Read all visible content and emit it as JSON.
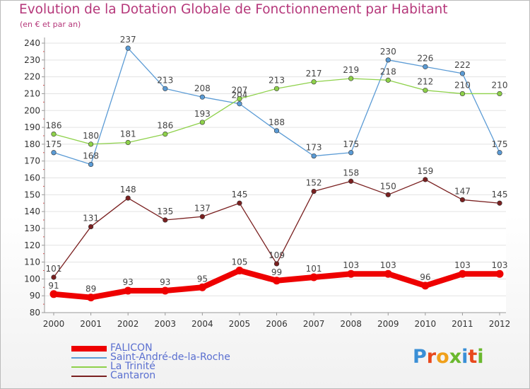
{
  "title": "Evolution de la Dotation Globale de Fonctionnement par Habitant",
  "subtitle": "(en € et par an)",
  "logo": {
    "text": "Proxiti",
    "colors": [
      "#3a8fd6",
      "#e8491d",
      "#f0a01a",
      "#6ab82e",
      "#3a8fd6",
      "#e8491d",
      "#6ab82e"
    ]
  },
  "chart_data": {
    "type": "line",
    "x": [
      "2000",
      "2001",
      "2002",
      "2003",
      "2004",
      "2005",
      "2006",
      "2007",
      "2008",
      "2009",
      "2010",
      "2011",
      "2012"
    ],
    "ylim": [
      80,
      240
    ],
    "yticks": [
      80,
      90,
      100,
      110,
      120,
      130,
      140,
      150,
      160,
      170,
      180,
      190,
      200,
      210,
      220,
      230,
      240
    ],
    "grid": "horizontal",
    "legend_position": "bottom-left",
    "series": [
      {
        "name": "FALICON",
        "color": "#ee0000",
        "values": [
          91,
          89,
          93,
          93,
          95,
          105,
          99,
          101,
          103,
          103,
          96,
          103,
          103
        ]
      },
      {
        "name": "Saint-André-de-la-Roche",
        "color": "#5b9bd5",
        "values": [
          175,
          168,
          237,
          213,
          208,
          204,
          188,
          173,
          175,
          230,
          226,
          222,
          175
        ]
      },
      {
        "name": "La Trinité",
        "color": "#8ed14a",
        "values": [
          186,
          180,
          181,
          186,
          193,
          207,
          213,
          217,
          219,
          218,
          212,
          210,
          210
        ]
      },
      {
        "name": "Cantaron",
        "color": "#7a2020",
        "values": [
          101,
          131,
          148,
          135,
          137,
          145,
          109,
          152,
          158,
          150,
          159,
          147,
          145
        ]
      }
    ]
  }
}
